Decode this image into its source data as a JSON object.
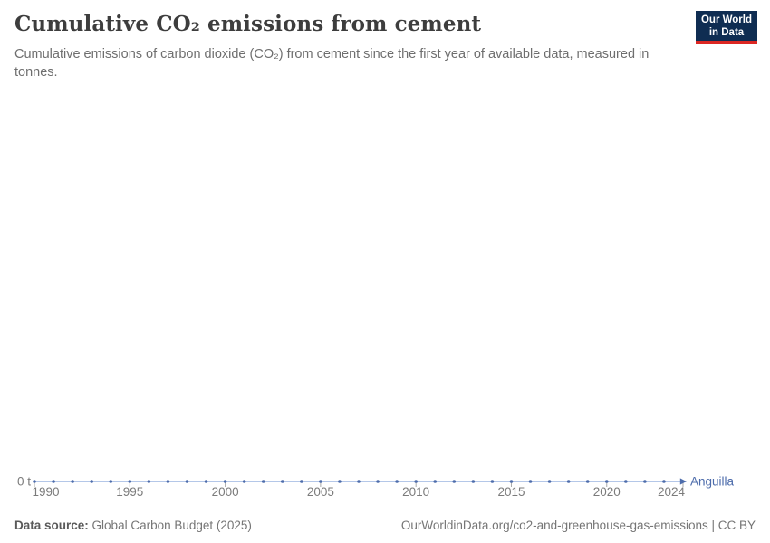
{
  "header": {
    "title": "Cumulative CO₂ emissions from cement",
    "subtitle": "Cumulative emissions of carbon dioxide (CO₂) from cement since the first year of available data, measured in tonnes.",
    "logo": {
      "line1": "Our World",
      "line2": "in Data",
      "bg_color": "#0f2d52",
      "accent_color": "#dc2723"
    }
  },
  "chart_data": {
    "type": "line",
    "title": "Cumulative CO₂ emissions from cement",
    "xlabel": "",
    "ylabel": "",
    "unit": "t",
    "grid": false,
    "legend_position": "end-of-line",
    "x": [
      1990,
      1991,
      1992,
      1993,
      1994,
      1995,
      1996,
      1997,
      1998,
      1999,
      2000,
      2001,
      2002,
      2003,
      2004,
      2005,
      2006,
      2007,
      2008,
      2009,
      2010,
      2011,
      2012,
      2013,
      2014,
      2015,
      2016,
      2017,
      2018,
      2019,
      2020,
      2021,
      2022,
      2023,
      2024
    ],
    "series": [
      {
        "name": "Anguilla",
        "values": [
          0,
          0,
          0,
          0,
          0,
          0,
          0,
          0,
          0,
          0,
          0,
          0,
          0,
          0,
          0,
          0,
          0,
          0,
          0,
          0,
          0,
          0,
          0,
          0,
          0,
          0,
          0,
          0,
          0,
          0,
          0,
          0,
          0,
          0,
          0
        ],
        "line_color": "#aabfe5",
        "marker_color": "#4d6cab"
      }
    ],
    "x_ticks": [
      1990,
      1995,
      2000,
      2005,
      2010,
      2015,
      2020,
      2024
    ],
    "y_ticks": [
      "0 t"
    ],
    "xlim": [
      1990,
      2024
    ],
    "ylim": [
      0,
      0
    ]
  },
  "footer": {
    "source_label": "Data source:",
    "source_text": "Global Carbon Budget (2025)",
    "link_text": "OurWorldinData.org/co2-and-greenhouse-gas-emissions | CC BY"
  }
}
